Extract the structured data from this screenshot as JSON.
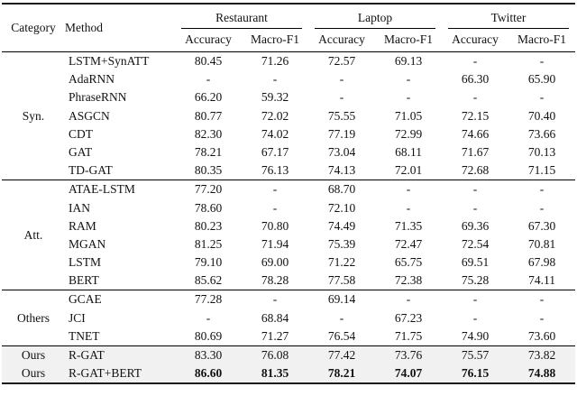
{
  "table": {
    "col_headers": {
      "category": "Category",
      "method": "Method",
      "groups": [
        {
          "label": "Restaurant",
          "sub": [
            "Accuracy",
            "Macro-F1"
          ]
        },
        {
          "label": "Laptop",
          "sub": [
            "Accuracy",
            "Macro-F1"
          ]
        },
        {
          "label": "Twitter",
          "sub": [
            "Accuracy",
            "Macro-F1"
          ]
        }
      ]
    },
    "sections": [
      {
        "category": "Syn.",
        "highlight": false,
        "per_row_category": false,
        "rows": [
          {
            "method": "LSTM+SynATT",
            "bold": false,
            "values": [
              "80.45",
              "71.26",
              "72.57",
              "69.13",
              "-",
              "-"
            ]
          },
          {
            "method": "AdaRNN",
            "bold": false,
            "values": [
              "-",
              "-",
              "-",
              "-",
              "66.30",
              "65.90"
            ]
          },
          {
            "method": "PhraseRNN",
            "bold": false,
            "values": [
              "66.20",
              "59.32",
              "-",
              "-",
              "-",
              "-"
            ]
          },
          {
            "method": "ASGCN",
            "bold": false,
            "values": [
              "80.77",
              "72.02",
              "75.55",
              "71.05",
              "72.15",
              "70.40"
            ]
          },
          {
            "method": "CDT",
            "bold": false,
            "values": [
              "82.30",
              "74.02",
              "77.19",
              "72.99",
              "74.66",
              "73.66"
            ]
          },
          {
            "method": "GAT",
            "bold": false,
            "values": [
              "78.21",
              "67.17",
              "73.04",
              "68.11",
              "71.67",
              "70.13"
            ]
          },
          {
            "method": "TD-GAT",
            "bold": false,
            "values": [
              "80.35",
              "76.13",
              "74.13",
              "72.01",
              "72.68",
              "71.15"
            ]
          }
        ]
      },
      {
        "category": "Att.",
        "highlight": false,
        "per_row_category": false,
        "rows": [
          {
            "method": "ATAE-LSTM",
            "bold": false,
            "values": [
              "77.20",
              "-",
              "68.70",
              "-",
              "-",
              "-"
            ]
          },
          {
            "method": "IAN",
            "bold": false,
            "values": [
              "78.60",
              "-",
              "72.10",
              "-",
              "-",
              "-"
            ]
          },
          {
            "method": "RAM",
            "bold": false,
            "values": [
              "80.23",
              "70.80",
              "74.49",
              "71.35",
              "69.36",
              "67.30"
            ]
          },
          {
            "method": "MGAN",
            "bold": false,
            "values": [
              "81.25",
              "71.94",
              "75.39",
              "72.47",
              "72.54",
              "70.81"
            ]
          },
          {
            "method": "LSTM",
            "bold": false,
            "values": [
              "79.10",
              "69.00",
              "71.22",
              "65.75",
              "69.51",
              "67.98"
            ]
          },
          {
            "method": "BERT",
            "bold": false,
            "values": [
              "85.62",
              "78.28",
              "77.58",
              "72.38",
              "75.28",
              "74.11"
            ]
          }
        ]
      },
      {
        "category": "Others",
        "highlight": false,
        "per_row_category": false,
        "rows": [
          {
            "method": "GCAE",
            "bold": false,
            "values": [
              "77.28",
              "-",
              "69.14",
              "-",
              "-",
              "-"
            ]
          },
          {
            "method": "JCI",
            "bold": false,
            "values": [
              "-",
              "68.84",
              "-",
              "67.23",
              "-",
              "-"
            ]
          },
          {
            "method": "TNET",
            "bold": false,
            "values": [
              "80.69",
              "71.27",
              "76.54",
              "71.75",
              "74.90",
              "73.60"
            ]
          }
        ]
      },
      {
        "category": "Ours",
        "highlight": true,
        "per_row_category": true,
        "rows": [
          {
            "method": "R-GAT",
            "bold": false,
            "values": [
              "83.30",
              "76.08",
              "77.42",
              "73.76",
              "75.57",
              "73.82"
            ]
          },
          {
            "method": "R-GAT+BERT",
            "bold": true,
            "values": [
              "86.60",
              "81.35",
              "78.21",
              "74.07",
              "76.15",
              "74.88"
            ]
          }
        ]
      }
    ],
    "colors": {
      "highlight_bg": "#f1f1f1",
      "rule": "#000000"
    }
  }
}
